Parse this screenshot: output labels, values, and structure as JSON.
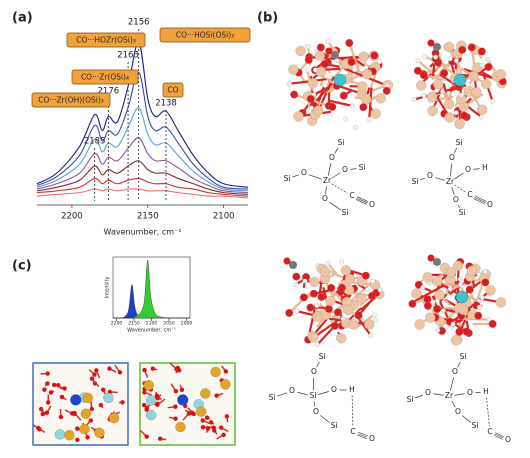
{
  "panel_labels": [
    "(a)",
    "(b)",
    "(c)"
  ],
  "chart_data": [
    {
      "type": "line",
      "xlabel": "Wavenumber, cm⁻¹",
      "x": [
        2223,
        2210,
        2195,
        2185,
        2180,
        2176,
        2170,
        2163,
        2156,
        2150,
        2145,
        2138,
        2130,
        2120,
        2110,
        2100,
        2084
      ],
      "xlim": [
        2223,
        2084
      ],
      "xticks": [
        2200,
        2150,
        2100
      ],
      "ylim": [
        0,
        1
      ],
      "series": [
        {
          "color": "#1c1f78",
          "values": [
            0.12,
            0.18,
            0.33,
            0.51,
            0.42,
            0.5,
            0.47,
            0.67,
            0.92,
            0.6,
            0.5,
            0.53,
            0.42,
            0.28,
            0.18,
            0.12,
            0.1
          ]
        },
        {
          "color": "#3a48b8",
          "values": [
            0.11,
            0.16,
            0.28,
            0.45,
            0.36,
            0.42,
            0.4,
            0.55,
            0.75,
            0.5,
            0.42,
            0.44,
            0.35,
            0.23,
            0.15,
            0.1,
            0.09
          ]
        },
        {
          "color": "#5aa0d8",
          "values": [
            0.1,
            0.14,
            0.23,
            0.37,
            0.3,
            0.35,
            0.33,
            0.44,
            0.55,
            0.4,
            0.34,
            0.35,
            0.28,
            0.19,
            0.13,
            0.09,
            0.08
          ]
        },
        {
          "color": "#8a5a9a",
          "values": [
            0.09,
            0.12,
            0.18,
            0.29,
            0.23,
            0.27,
            0.25,
            0.32,
            0.38,
            0.29,
            0.25,
            0.25,
            0.21,
            0.15,
            0.11,
            0.08,
            0.07
          ]
        },
        {
          "color": "#7a2a2a",
          "values": [
            0.08,
            0.1,
            0.14,
            0.22,
            0.17,
            0.2,
            0.18,
            0.22,
            0.25,
            0.2,
            0.18,
            0.18,
            0.15,
            0.12,
            0.09,
            0.07,
            0.06
          ]
        },
        {
          "color": "#c83030",
          "values": [
            0.07,
            0.08,
            0.1,
            0.15,
            0.12,
            0.14,
            0.12,
            0.14,
            0.15,
            0.13,
            0.12,
            0.12,
            0.1,
            0.09,
            0.07,
            0.06,
            0.05
          ]
        },
        {
          "color": "#ee7070",
          "values": [
            0.05,
            0.06,
            0.07,
            0.09,
            0.08,
            0.09,
            0.08,
            0.09,
            0.09,
            0.08,
            0.08,
            0.08,
            0.07,
            0.06,
            0.05,
            0.05,
            0.04
          ]
        }
      ],
      "peaks": [
        2185,
        2176,
        2163,
        2156,
        2138
      ],
      "assignments": [
        "CO···Zr(OH)(OSi)₃",
        "CO···Zr(OSi)₄",
        "CO···HOZr(OSi)₃",
        "CO···HOSi(OSi)₃",
        "CO"
      ]
    },
    {
      "type": "area",
      "ylabel": "Intensity",
      "xlabel": "Wavenumber, cm⁻¹",
      "x": [
        2210,
        2190,
        2175,
        2165,
        2156,
        2148,
        2140,
        2130,
        2120,
        2111,
        2102,
        2090,
        2075,
        2050,
        2020,
        1990
      ],
      "xlim": [
        2210,
        1990
      ],
      "xticks": [
        2200,
        2150,
        2100,
        2050,
        2000
      ],
      "ylim": [
        0,
        1
      ],
      "series": [
        {
          "color": "#1f3fbf",
          "values": [
            0,
            0,
            0.03,
            0.15,
            0.55,
            0.2,
            0.05,
            0.02,
            0,
            0,
            0,
            0,
            0,
            0,
            0,
            0
          ]
        },
        {
          "color": "#33cc33",
          "values": [
            0,
            0,
            0,
            0,
            0,
            0.02,
            0.05,
            0.1,
            0.3,
            0.95,
            0.35,
            0.08,
            0.02,
            0,
            0,
            0
          ]
        }
      ]
    }
  ],
  "schemes": [
    {
      "atoms": [
        "Si",
        "O",
        "Si",
        "O",
        "Zr",
        "O",
        "Si",
        "O",
        "Si",
        "C",
        "O"
      ]
    },
    {
      "atoms": [
        "Si",
        "O",
        "Si",
        "O",
        "Zr",
        "O",
        "H",
        "O",
        "Si",
        "C",
        "O"
      ]
    },
    {
      "atoms": [
        "Si",
        "O",
        "Si",
        "O",
        "Si",
        "O",
        "H",
        "O",
        "Si",
        "C",
        "O"
      ]
    },
    {
      "atoms": [
        "Si",
        "O",
        "Si",
        "O",
        "Zr",
        "O",
        "H",
        "O",
        "Si",
        "C",
        "O"
      ]
    }
  ]
}
